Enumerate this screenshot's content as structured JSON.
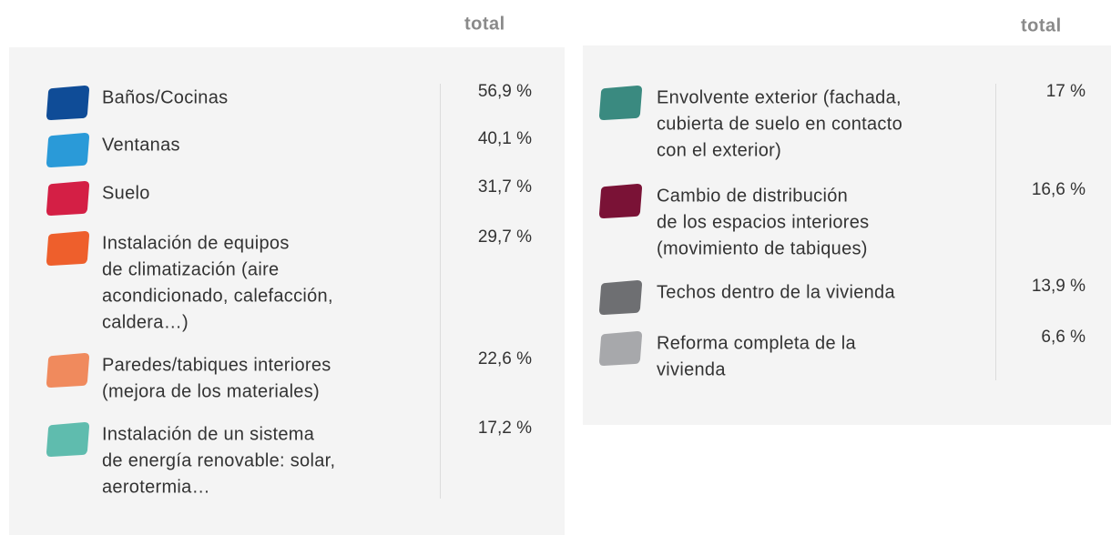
{
  "panels": [
    {
      "header": "total",
      "rows": [
        {
          "label": [
            "Baños/Cocinas"
          ],
          "value": "56,9 %",
          "color": "#0f4c97"
        },
        {
          "label": [
            "Ventanas"
          ],
          "value": "40,1 %",
          "color": "#2a9ad8"
        },
        {
          "label": [
            "Suelo"
          ],
          "value": "31,7 %",
          "color": "#d41f45"
        },
        {
          "label": [
            "Instalación de equipos",
            "de climatización (aire",
            "acondicionado, calefacción,",
            "caldera…)"
          ],
          "value": "29,7 %",
          "color": "#ee5f2c"
        },
        {
          "label": [
            "Paredes/tabiques interiores",
            "(mejora de los materiales)"
          ],
          "value": "22,6 %",
          "color": "#f08a5d"
        },
        {
          "label": [
            "Instalación de un sistema",
            "de energía renovable: solar,",
            "aerotermia…"
          ],
          "value": "17,2 %",
          "color": "#5fbcae"
        }
      ]
    },
    {
      "header": "total",
      "rows": [
        {
          "label": [
            "Envolvente exterior (fachada,",
            "cubierta de suelo en contacto",
            "con el exterior)"
          ],
          "value": "17 %",
          "color": "#3a8a80"
        },
        {
          "label": [
            "Cambio de distribución",
            "de los espacios interiores",
            "(movimiento de tabiques)"
          ],
          "value": "16,6 %",
          "color": "#7a1236"
        },
        {
          "label": [
            "Techos dentro de la vivienda"
          ],
          "value": "13,9 %",
          "color": "#6e6f72"
        },
        {
          "label": [
            "Reforma completa de la",
            "vivienda"
          ],
          "value": "6,6 %",
          "color": "#a7a8ab"
        }
      ]
    }
  ]
}
